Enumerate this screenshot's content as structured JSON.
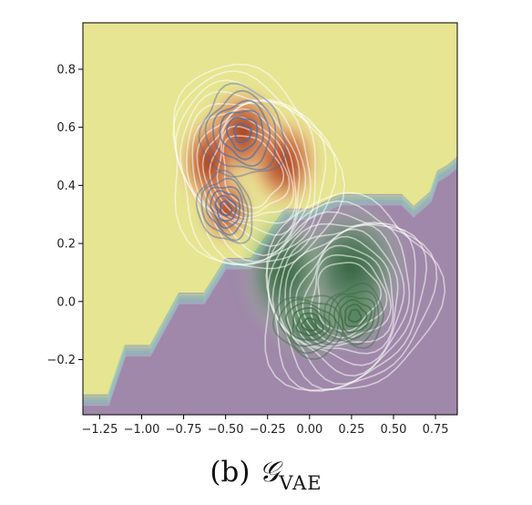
{
  "chart_data": {
    "type": "heatmap",
    "title": "",
    "xlabel": "",
    "ylabel": "",
    "xlim": [
      -1.35,
      0.88
    ],
    "ylim": [
      -0.39,
      0.96
    ],
    "x_ticks": [
      -1.25,
      -1.0,
      -0.75,
      -0.5,
      -0.25,
      0.0,
      0.25,
      0.5,
      0.75
    ],
    "x_tick_labels": [
      "−1.25",
      "−1.00",
      "−0.75",
      "−0.50",
      "−0.25",
      "0.00",
      "0.25",
      "0.50",
      "0.75"
    ],
    "y_ticks": [
      -0.2,
      0.0,
      0.2,
      0.4,
      0.6,
      0.8
    ],
    "y_tick_labels": [
      "−0.2",
      "0.0",
      "0.2",
      "0.4",
      "0.6",
      "0.8"
    ],
    "grid": false,
    "regions": {
      "upper_color": "#e6e591",
      "lower_color": "#9f88a9",
      "boundary": [
        [
          -1.35,
          -0.32
        ],
        [
          -1.2,
          -0.32
        ],
        [
          -1.1,
          -0.15
        ],
        [
          -0.95,
          -0.15
        ],
        [
          -0.78,
          0.03
        ],
        [
          -0.63,
          0.03
        ],
        [
          -0.5,
          0.15
        ],
        [
          -0.35,
          0.15
        ],
        [
          -0.15,
          0.32
        ],
        [
          0.0,
          0.32
        ],
        [
          0.18,
          0.37
        ],
        [
          0.45,
          0.37
        ],
        [
          0.55,
          0.37
        ],
        [
          0.62,
          0.33
        ],
        [
          0.72,
          0.38
        ],
        [
          0.76,
          0.45
        ],
        [
          0.82,
          0.47
        ],
        [
          0.88,
          0.5
        ]
      ]
    },
    "density_clusters": [
      {
        "color": "#b33a1e",
        "contour_color": "#4a6fa8",
        "peaks": [
          [
            -0.5,
            0.32,
            0.09,
            0.07
          ],
          [
            -0.4,
            0.58,
            0.14,
            0.09
          ],
          [
            -0.15,
            0.48,
            0.12,
            0.09
          ],
          [
            -0.6,
            0.48,
            0.1,
            0.09
          ]
        ]
      },
      {
        "color": "#2f6e3a",
        "contour_color": "#3f6a45",
        "peaks": [
          [
            0.0,
            -0.08,
            0.12,
            0.06
          ],
          [
            0.27,
            -0.05,
            0.1,
            0.06
          ],
          [
            0.25,
            0.12,
            0.18,
            0.12
          ],
          [
            -0.15,
            0.1,
            0.14,
            0.12
          ]
        ]
      }
    ],
    "outer_contour_color": "#ffffff"
  },
  "caption": {
    "label": "(b)",
    "symbol": "𝒢",
    "subscript": "VAE"
  }
}
